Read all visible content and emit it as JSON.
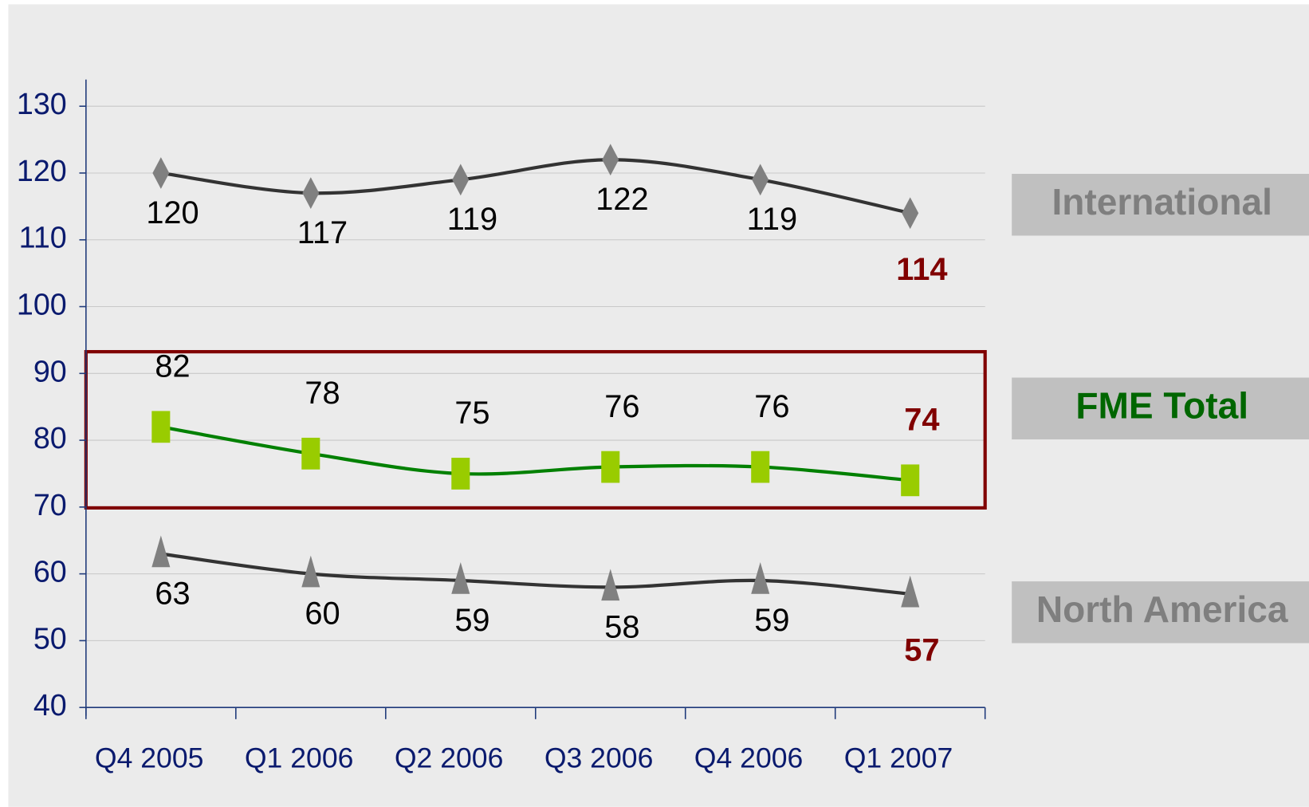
{
  "chart_data": {
    "type": "line",
    "categories": [
      "Q4 2005",
      "Q1 2006",
      "Q2 2006",
      "Q3 2006",
      "Q4 2006",
      "Q1 2007"
    ],
    "series": [
      {
        "name": "International",
        "color": "#333333",
        "marker": "diamond",
        "marker_color": "#808080",
        "legend_color": "#7f7f7f",
        "label_position": "below",
        "values": [
          120,
          117,
          119,
          122,
          119,
          114
        ]
      },
      {
        "name": "FME Total",
        "color": "#008000",
        "marker": "square",
        "marker_color": "#99cc00",
        "legend_color": "#006600",
        "label_position": "above",
        "values": [
          82,
          78,
          75,
          76,
          76,
          74
        ]
      },
      {
        "name": "North America",
        "color": "#333333",
        "marker": "triangle",
        "marker_color": "#808080",
        "legend_color": "#7f7f7f",
        "label_position": "below",
        "values": [
          63,
          60,
          59,
          58,
          59,
          57
        ]
      }
    ],
    "last_label_color": "#800000",
    "ylim": [
      40,
      130
    ],
    "yticks": [
      40,
      50,
      60,
      70,
      80,
      90,
      100,
      110,
      120,
      130
    ],
    "grid": true
  }
}
